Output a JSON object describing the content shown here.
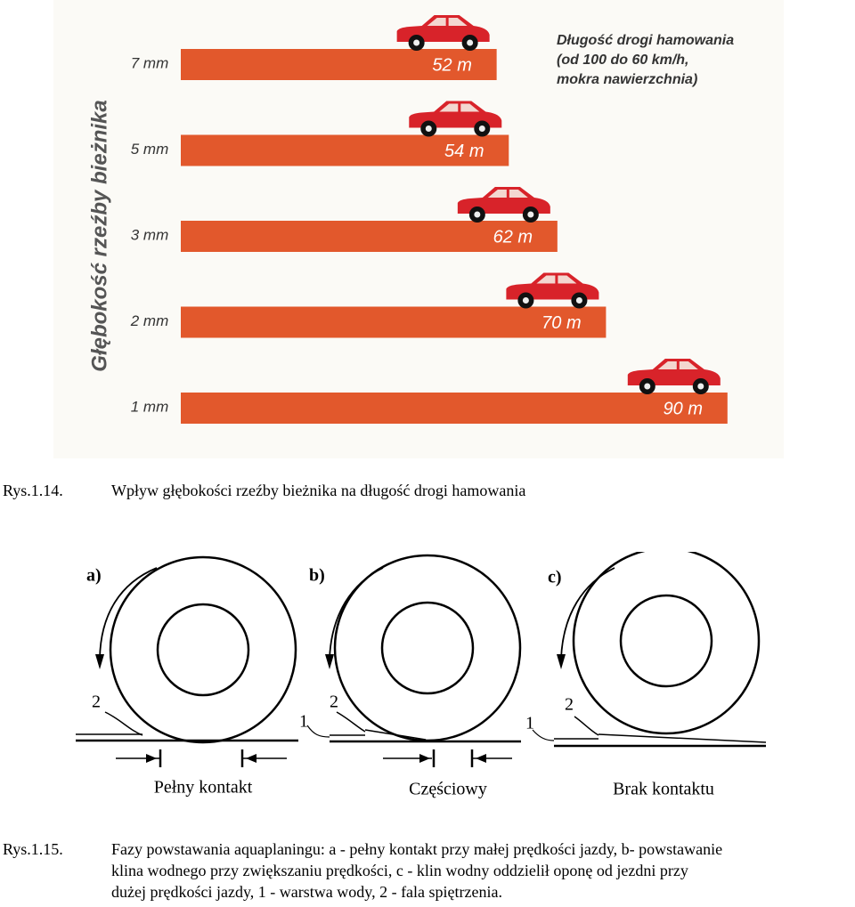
{
  "chart_data": {
    "type": "bar",
    "orientation": "horizontal",
    "title": "Długość drogi hamowania",
    "subtitle": [
      "(od 100 do 60 km/h,",
      "mokra nawierzchnia)"
    ],
    "y_label": "Głębokość rzeźby bieżnika",
    "categories": [
      "7 mm",
      "5 mm",
      "3 mm",
      "2 mm",
      "1 mm"
    ],
    "values": [
      52,
      54,
      62,
      70,
      90
    ],
    "value_labels": [
      "52 m",
      "54 m",
      "62 m",
      "70 m",
      "90 m"
    ],
    "color": "#e2582c"
  },
  "figure1": {
    "number": "Rys.1.14.",
    "caption": "Wpływ głębokości rzeźby bieżnika na długość drogi hamowania"
  },
  "diagram": {
    "panels": [
      {
        "label": "a)",
        "caption": "Pełny kontakt",
        "markers": [
          "2"
        ]
      },
      {
        "label": "b)",
        "caption": "Częściowy",
        "markers": [
          "1",
          "2"
        ]
      },
      {
        "label": "c)",
        "caption": "Brak kontaktu",
        "markers": [
          "1",
          "2"
        ]
      }
    ]
  },
  "figure2": {
    "number": "Rys.1.15.",
    "caption_lines": [
      "Fazy powstawania aquaplaningu: a - pełny kontakt przy małej prędkości jazdy, b- powstawanie",
      "klina wodnego przy zwiększaniu prędkości, c - klin wodny oddzielił oponę od jezdni przy",
      "dużej prędkości jazdy, 1 - warstwa wody, 2 - fala spiętrzenia."
    ]
  }
}
